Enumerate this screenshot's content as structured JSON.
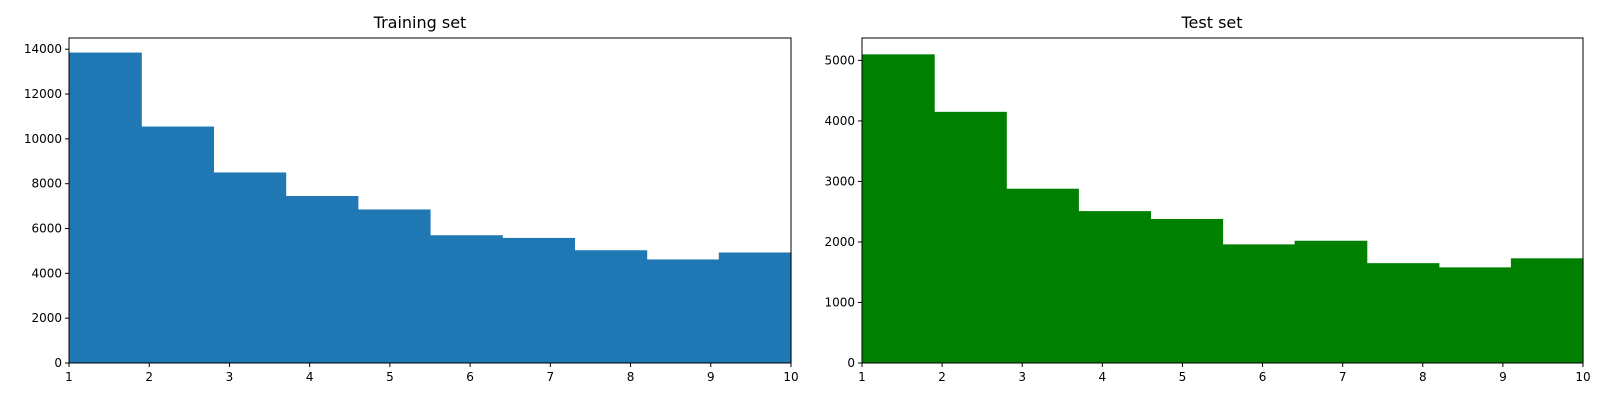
{
  "chart_data": [
    {
      "type": "bar",
      "title": "Training set",
      "color": "#1f77b4",
      "xlim": [
        1,
        10
      ],
      "ylim": [
        0,
        14500
      ],
      "xticks": [
        1,
        2,
        3,
        4,
        5,
        6,
        7,
        8,
        9,
        10
      ],
      "xtick_labels": [
        "1",
        "2",
        "3",
        "4",
        "5",
        "6",
        "7",
        "8",
        "9",
        "10"
      ],
      "yticks": [
        0,
        2000,
        4000,
        6000,
        8000,
        10000,
        12000,
        14000
      ],
      "ytick_labels": [
        "0",
        "2000",
        "4000",
        "6000",
        "8000",
        "10000",
        "12000",
        "14000"
      ],
      "bin_edges": [
        1,
        1.9,
        2.8,
        3.7,
        4.6,
        5.5,
        6.4,
        7.3,
        8.2,
        9.1,
        10
      ],
      "values": [
        13850,
        10550,
        8500,
        7450,
        6850,
        5700,
        5580,
        5030,
        4620,
        4930
      ],
      "xlabel": "",
      "ylabel": ""
    },
    {
      "type": "bar",
      "title": "Test set",
      "color": "#008000",
      "xlim": [
        1,
        10
      ],
      "ylim": [
        0,
        5370
      ],
      "xticks": [
        1,
        2,
        3,
        4,
        5,
        6,
        7,
        8,
        9,
        10
      ],
      "xtick_labels": [
        "1",
        "2",
        "3",
        "4",
        "5",
        "6",
        "7",
        "8",
        "9",
        "10"
      ],
      "yticks": [
        0,
        1000,
        2000,
        3000,
        4000,
        5000
      ],
      "ytick_labels": [
        "0",
        "1000",
        "2000",
        "3000",
        "4000",
        "5000"
      ],
      "bin_edges": [
        1,
        1.9,
        2.8,
        3.7,
        4.6,
        5.5,
        6.4,
        7.3,
        8.2,
        9.1,
        10
      ],
      "values": [
        5100,
        4150,
        2880,
        2510,
        2380,
        1960,
        2020,
        1650,
        1580,
        1730
      ],
      "xlabel": "",
      "ylabel": ""
    }
  ]
}
